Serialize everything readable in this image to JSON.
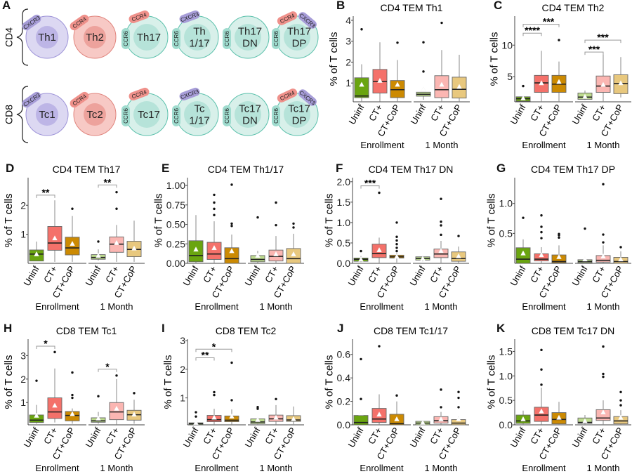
{
  "panel_a": {
    "letter": "A",
    "rows": [
      {
        "label": "CD4",
        "cells": [
          {
            "lines": [
              "Th1"
            ],
            "type": "th1",
            "tags": [
              "CXCR3"
            ]
          },
          {
            "lines": [
              "Th2"
            ],
            "type": "th2",
            "tags": [
              "CCR4"
            ]
          },
          {
            "lines": [
              "Th17"
            ],
            "type": "th17",
            "tags": [
              "CCR6",
              "CCR4"
            ]
          },
          {
            "lines": [
              "Th",
              "1/17"
            ],
            "type": "th17",
            "tags": [
              "CCR6",
              "CXCR3"
            ]
          },
          {
            "lines": [
              "Th17",
              "DN"
            ],
            "type": "th17",
            "tags": [
              "CCR6"
            ]
          },
          {
            "lines": [
              "Th17",
              "DP"
            ],
            "type": "th17",
            "tags": [
              "CCR6",
              "CCR4",
              "CXCR3"
            ]
          }
        ]
      },
      {
        "label": "CD8",
        "cells": [
          {
            "lines": [
              "Tc1"
            ],
            "type": "th1",
            "tags": [
              "CXCR3"
            ]
          },
          {
            "lines": [
              "Tc2"
            ],
            "type": "th2",
            "tags": [
              "CCR4"
            ]
          },
          {
            "lines": [
              "Tc17"
            ],
            "type": "th17",
            "tags": [
              "CCR6",
              "CCR4"
            ]
          },
          {
            "lines": [
              "Tc",
              "1/17"
            ],
            "type": "th17",
            "tags": [
              "CCR6",
              "CXCR3"
            ]
          },
          {
            "lines": [
              "Tc17",
              "DN"
            ],
            "type": "th17",
            "tags": [
              "CCR6"
            ]
          },
          {
            "lines": [
              "Tc17",
              "DP"
            ],
            "type": "th17",
            "tags": [
              "CCR6",
              "CCR4",
              "CXCR3"
            ]
          }
        ]
      }
    ],
    "cell_colors": {
      "th1": {
        "outer": "#dcd8f2",
        "inner": "#bdb5e6",
        "stroke": "#9d93d8"
      },
      "th2": {
        "outer": "#f7c9c5",
        "inner": "#eda29c",
        "stroke": "#e0847d"
      },
      "th17": {
        "outer": "#d8f0ea",
        "inner": "#b6e3d9",
        "stroke": "#5cc1ac"
      }
    },
    "tag_colors": {
      "CXCR3": "#a79dd8",
      "CCR4": "#ef918b",
      "CCR6": "#a0dccf"
    }
  },
  "common": {
    "ylabel": "% of T cells",
    "categories": [
      "Uninf",
      "CT+",
      "CT+CoP",
      "Uninf",
      "CT+",
      "CT+CoP"
    ],
    "groups": [
      "Enrollment",
      "1 Month"
    ],
    "colors": [
      "#6aa510",
      "#f4716a",
      "#cc8a02",
      "#bddb8e",
      "#fbb6b2",
      "#e8c87e"
    ],
    "box_fields": [
      "q1",
      "median",
      "q3",
      "whisker_low",
      "whisker_high",
      "mean",
      "outliers"
    ]
  },
  "chart_data": [
    {
      "id": "B",
      "letter": "B",
      "type": "box",
      "title": "CD4 TEM Th1",
      "ylim": [
        0.1,
        4.2
      ],
      "yticks": [
        1,
        2,
        3,
        4
      ],
      "ytick_labels": [
        "1",
        "2",
        "3",
        "4"
      ],
      "boxes": [
        [
          0.3,
          0.38,
          1.25,
          0.1,
          1.9,
          0.93,
          [
            3.57
          ]
        ],
        [
          0.52,
          1.07,
          1.65,
          0.12,
          2.95,
          1.12,
          []
        ],
        [
          0.3,
          0.68,
          1.12,
          0.1,
          2.1,
          0.93,
          [
            2.93
          ]
        ],
        [
          0.37,
          0.46,
          0.56,
          0.2,
          0.56,
          0.7,
          [
            1.55,
            2.95
          ]
        ],
        [
          0.3,
          0.68,
          1.35,
          0.1,
          2.58,
          0.93,
          [
            3.88
          ]
        ],
        [
          0.28,
          0.7,
          1.28,
          0.1,
          2.35,
          0.83,
          []
        ]
      ],
      "significance": []
    },
    {
      "id": "C",
      "letter": "C",
      "type": "box",
      "title": "CD4 TEM Th2",
      "ylim": [
        1,
        14.6
      ],
      "yticks": [
        5,
        10
      ],
      "ytick_labels": [
        "5",
        "10"
      ],
      "boxes": [
        [
          1.1,
          1.5,
          1.8,
          1.1,
          1.8,
          1.6,
          [
            3.5
          ]
        ],
        [
          2.5,
          4.0,
          5.2,
          1.0,
          9.1,
          4.0,
          []
        ],
        [
          2.5,
          3.8,
          5.2,
          1.0,
          7.4,
          4.2,
          [
            10.8
          ]
        ],
        [
          1.4,
          1.75,
          2.4,
          1.3,
          2.8,
          1.85,
          []
        ],
        [
          2.5,
          3.5,
          5.1,
          1.0,
          8.5,
          3.75,
          []
        ],
        [
          2.3,
          3.9,
          5.3,
          1.7,
          8.1,
          4.0,
          []
        ]
      ],
      "significance": [
        [
          0,
          1,
          11.9,
          "****"
        ],
        [
          0,
          2,
          13.3,
          "***"
        ],
        [
          3,
          4,
          8.9,
          "***"
        ],
        [
          3,
          5,
          10.8,
          "***"
        ]
      ]
    },
    {
      "id": "D",
      "letter": "D",
      "type": "box",
      "title": "CD4 TEM Th17",
      "ylim": [
        0,
        2.95
      ],
      "yticks": [
        1,
        2
      ],
      "ytick_labels": [
        "1",
        "2"
      ],
      "boxes": [
        [
          0.08,
          0.32,
          0.46,
          0.08,
          0.75,
          0.32,
          []
        ],
        [
          0.45,
          0.7,
          1.27,
          0.05,
          2.17,
          0.87,
          []
        ],
        [
          0.29,
          0.53,
          0.9,
          0.05,
          1.63,
          0.68,
          [
            1.88
          ]
        ],
        [
          0.14,
          0.2,
          0.3,
          0.1,
          0.48,
          0.27,
          [
            0.75
          ]
        ],
        [
          0.38,
          0.66,
          0.91,
          0.05,
          1.32,
          0.71,
          [
            1.88,
            2.45
          ]
        ],
        [
          0.23,
          0.48,
          0.76,
          0.05,
          1.47,
          0.52,
          []
        ]
      ],
      "significance": [
        [
          0,
          1,
          2.35,
          "**"
        ],
        [
          3,
          4,
          2.7,
          "**"
        ]
      ]
    },
    {
      "id": "E",
      "letter": "E",
      "type": "box",
      "title": "CD4 TEM Th1/17",
      "ylim": [
        0,
        1.1
      ],
      "yticks": [
        0,
        0.25,
        0.5,
        0.75,
        1.0
      ],
      "ytick_labels": [
        "0.00",
        "0.25",
        "0.50",
        "0.75",
        "1.00"
      ],
      "boxes": [
        [
          0.02,
          0.1,
          0.29,
          0,
          0.62,
          0.18,
          []
        ],
        [
          0.05,
          0.12,
          0.27,
          0,
          0.54,
          0.2,
          [
            0.62,
            0.7,
            0.78,
            0.88
          ]
        ],
        [
          0,
          0.06,
          0.2,
          0,
          0.37,
          0.16,
          [
            0.48,
            0.51,
            1.01
          ]
        ],
        [
          0.02,
          0.05,
          0.1,
          0,
          0.16,
          0.1,
          [
            0.59
          ]
        ],
        [
          0.03,
          0.09,
          0.17,
          0,
          0.35,
          0.12,
          [
            0.49,
            0.78
          ]
        ],
        [
          0,
          0.06,
          0.19,
          0,
          0.38,
          0.12,
          [
            0.46,
            0.51
          ]
        ]
      ],
      "significance": []
    },
    {
      "id": "F",
      "letter": "F",
      "type": "box",
      "title": "CD4 TEM Th17 DN",
      "ylim": [
        0,
        2.1
      ],
      "yticks": [
        0,
        0.5,
        1.0,
        1.5,
        2.0
      ],
      "ytick_labels": [
        "0.0",
        "0.5",
        "1.0",
        "1.5",
        "2.0"
      ],
      "boxes": [
        [
          0.05,
          0.1,
          0.13,
          0.03,
          0.18,
          0.1,
          [
            0.3
          ]
        ],
        [
          0.14,
          0.24,
          0.47,
          0,
          0.63,
          0.33,
          [
            1.73
          ]
        ],
        [
          0.13,
          0.16,
          0.2,
          0.02,
          0.25,
          0.17,
          [
            0.3,
            0.38,
            0.47,
            0.56,
            0.65,
            1.0
          ]
        ],
        [
          0.08,
          0.12,
          0.16,
          0.05,
          0.18,
          0.12,
          []
        ],
        [
          0.14,
          0.23,
          0.35,
          0,
          0.55,
          0.31,
          [
            0.7,
            0.93,
            1.02,
            1.58
          ]
        ],
        [
          0.05,
          0.12,
          0.28,
          0,
          0.41,
          0.18,
          [
            0.67
          ]
        ]
      ],
      "significance": [
        [
          0,
          1,
          1.9,
          "***"
        ]
      ]
    },
    {
      "id": "G",
      "letter": "G",
      "type": "box",
      "title": "CD4 TEM Th17 DP",
      "ylim": [
        0,
        1.43
      ],
      "yticks": [
        0.5,
        1.0
      ],
      "ytick_labels": [
        "0.5",
        "1.0"
      ],
      "boxes": [
        [
          0,
          0.07,
          0.26,
          0,
          0.4,
          0.17,
          [
            0.76
          ]
        ],
        [
          0.04,
          0.07,
          0.16,
          0,
          0.27,
          0.14,
          [
            0.42,
            0.52,
            0.61,
            0.8
          ]
        ],
        [
          0.01,
          0.03,
          0.14,
          0,
          0.3,
          0.11,
          [
            0.43,
            0.47,
            0.49
          ]
        ],
        [
          0.01,
          0.03,
          0.06,
          0,
          0.07,
          0.07,
          [
            0.58
          ]
        ],
        [
          0.02,
          0.05,
          0.13,
          0,
          0.3,
          0.12,
          [
            0.35,
            0.48,
            1.32
          ]
        ],
        [
          0,
          0.03,
          0.1,
          0,
          0.2,
          0.07,
          [
            0.27
          ]
        ]
      ],
      "significance": []
    },
    {
      "id": "H",
      "letter": "H",
      "type": "box",
      "title": "CD8 TEM Tc1",
      "ylim": [
        0.05,
        3.7
      ],
      "yticks": [
        1,
        2,
        3
      ],
      "ytick_labels": [
        "1",
        "2",
        "3"
      ],
      "boxes": [
        [
          0.15,
          0.25,
          0.47,
          0.1,
          0.9,
          0.45,
          [
            1.93
          ]
        ],
        [
          0.32,
          0.6,
          1.2,
          0.15,
          2.45,
          0.88,
          [
            3.15
          ]
        ],
        [
          0.22,
          0.45,
          0.62,
          0.1,
          0.75,
          0.52,
          [
            1.2,
            1.32,
            2.28
          ]
        ],
        [
          0.16,
          0.22,
          0.35,
          0.1,
          0.6,
          0.33,
          [
            1.27
          ]
        ],
        [
          0.27,
          0.6,
          1.0,
          0.05,
          2.0,
          0.75,
          [
            2.15
          ]
        ],
        [
          0.25,
          0.48,
          0.67,
          0.1,
          1.12,
          0.5,
          [
            1.4
          ]
        ]
      ],
      "significance": [
        [
          0,
          1,
          3.4,
          "*"
        ],
        [
          3,
          4,
          2.42,
          "*"
        ]
      ]
    },
    {
      "id": "I",
      "letter": "I",
      "type": "box",
      "title": "CD8 TEM Tc2",
      "ylim": [
        0.06,
        3.05
      ],
      "yticks": [
        1,
        2,
        3
      ],
      "ytick_labels": [
        "1",
        "2",
        "3"
      ],
      "boxes": [
        [
          0.07,
          0.1,
          0.13,
          0.06,
          0.15,
          0.14,
          [
            0.35,
            0.5
          ]
        ],
        [
          0.17,
          0.24,
          0.39,
          0.06,
          0.62,
          0.32,
          [
            1.1,
            1.2
          ]
        ],
        [
          0.17,
          0.22,
          0.37,
          0.06,
          0.6,
          0.36,
          [
            0.92,
            2.23
          ]
        ],
        [
          0.1,
          0.16,
          0.27,
          0.06,
          0.3,
          0.24,
          [
            0.62,
            0.68
          ]
        ],
        [
          0.18,
          0.27,
          0.4,
          0.06,
          0.75,
          0.32,
          [
            0.96
          ]
        ],
        [
          0.18,
          0.23,
          0.38,
          0.08,
          0.7,
          0.27,
          []
        ]
      ],
      "significance": [
        [
          0,
          1,
          2.4,
          "**"
        ],
        [
          0,
          2,
          2.7,
          "*"
        ]
      ]
    },
    {
      "id": "J",
      "letter": "J",
      "type": "box",
      "title": "CD8 TEM Tc1/17",
      "ylim": [
        0,
        0.73
      ],
      "yticks": [
        0,
        0.2,
        0.4,
        0.6
      ],
      "ytick_labels": [
        "0.0",
        "0.2",
        "0.4",
        "0.6"
      ],
      "boxes": [
        [
          0,
          0.02,
          0.08,
          0,
          0.08,
          0.1,
          [
            0.22,
            0.56
          ]
        ],
        [
          0.02,
          0.05,
          0.14,
          0,
          0.26,
          0.09,
          [
            0.67
          ]
        ],
        [
          0,
          0.01,
          0.09,
          0,
          0.2,
          0.05,
          [
            0.25
          ]
        ],
        [
          0,
          0.015,
          0.03,
          0,
          0.04,
          0.02,
          []
        ],
        [
          0.015,
          0.035,
          0.07,
          0,
          0.11,
          0.05,
          [
            0.15,
            0.3
          ]
        ],
        [
          0,
          0.015,
          0.045,
          0,
          0.07,
          0.05,
          [
            0.15,
            0.23,
            0.28
          ]
        ]
      ],
      "significance": []
    },
    {
      "id": "K",
      "letter": "K",
      "type": "box",
      "title": "CD8 TEM Tc17 DN",
      "ylim": [
        0,
        1.75
      ],
      "yticks": [
        0,
        0.5,
        1.0,
        1.5
      ],
      "ytick_labels": [
        "0.0",
        "0.5",
        "1.0",
        "1.5"
      ],
      "boxes": [
        [
          0.03,
          0.08,
          0.2,
          0,
          0.29,
          0.12,
          []
        ],
        [
          0.07,
          0.2,
          0.36,
          0,
          0.76,
          0.28,
          [
            0.82,
            1.13,
            1.53
          ]
        ],
        [
          0.02,
          0.11,
          0.25,
          0,
          0.47,
          0.15,
          []
        ],
        [
          0.03,
          0.05,
          0.14,
          0,
          0.2,
          0.08,
          []
        ],
        [
          0.09,
          0.14,
          0.31,
          0,
          0.5,
          0.26,
          [
            0.98,
            1.04,
            1.6
          ]
        ],
        [
          0.02,
          0.08,
          0.17,
          0,
          0.3,
          0.15,
          [
            0.4,
            0.5,
            0.67
          ]
        ]
      ],
      "significance": []
    }
  ]
}
